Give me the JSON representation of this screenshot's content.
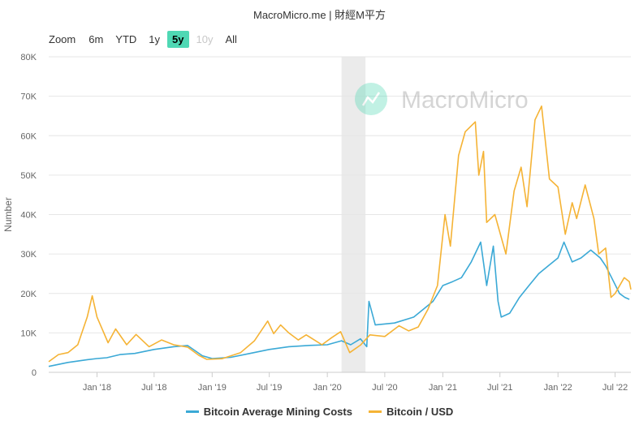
{
  "header": {
    "title": "MacroMicro.me | 財經M平方"
  },
  "zoom": {
    "label": "Zoom",
    "buttons": [
      {
        "label": "6m",
        "state": "normal"
      },
      {
        "label": "YTD",
        "state": "normal"
      },
      {
        "label": "1y",
        "state": "normal"
      },
      {
        "label": "5y",
        "state": "active"
      },
      {
        "label": "10y",
        "state": "disabled"
      },
      {
        "label": "All",
        "state": "normal"
      }
    ]
  },
  "watermark": {
    "text": "MacroMicro"
  },
  "colors": {
    "mining": "#3ba9d6",
    "price": "#f5b335",
    "recession": "#ebebeb",
    "grid": "#e6e6e6"
  },
  "chart_data": {
    "type": "line",
    "ylabel": "Number",
    "ylim": [
      0,
      80000
    ],
    "yticks": [
      {
        "v": 0,
        "label": "0"
      },
      {
        "v": 10000,
        "label": "10K"
      },
      {
        "v": 20000,
        "label": "20K"
      },
      {
        "v": 30000,
        "label": "30K"
      },
      {
        "v": 40000,
        "label": "40K"
      },
      {
        "v": 50000,
        "label": "50K"
      },
      {
        "v": 60000,
        "label": "60K"
      },
      {
        "v": 70000,
        "label": "70K"
      },
      {
        "v": 80000,
        "label": "80K"
      }
    ],
    "xlim": [
      "2017-08-01",
      "2022-08-20"
    ],
    "xticks": [
      {
        "date": "2018-01-01",
        "label": "Jan '18"
      },
      {
        "date": "2018-07-01",
        "label": "Jul '18"
      },
      {
        "date": "2019-01-01",
        "label": "Jan '19"
      },
      {
        "date": "2019-07-01",
        "label": "Jul '19"
      },
      {
        "date": "2020-01-01",
        "label": "Jan '20"
      },
      {
        "date": "2020-07-01",
        "label": "Jul '20"
      },
      {
        "date": "2021-01-01",
        "label": "Jan '21"
      },
      {
        "date": "2021-07-01",
        "label": "Jul '21"
      },
      {
        "date": "2022-01-01",
        "label": "Jan '22"
      },
      {
        "date": "2022-07-01",
        "label": "Jul '22"
      }
    ],
    "shaded_band": [
      "2020-02-15",
      "2020-05-01"
    ],
    "series": [
      {
        "name": "Bitcoin Average Mining Costs",
        "color": "#3ba9d6",
        "points": [
          [
            "2017-08-01",
            1500
          ],
          [
            "2017-10-01",
            2500
          ],
          [
            "2017-12-01",
            3200
          ],
          [
            "2018-01-01",
            3500
          ],
          [
            "2018-02-01",
            3700
          ],
          [
            "2018-03-15",
            4500
          ],
          [
            "2018-05-01",
            4800
          ],
          [
            "2018-07-01",
            5800
          ],
          [
            "2018-09-01",
            6500
          ],
          [
            "2018-10-15",
            6800
          ],
          [
            "2018-12-01",
            4200
          ],
          [
            "2019-01-01",
            3500
          ],
          [
            "2019-03-01",
            3800
          ],
          [
            "2019-05-01",
            4800
          ],
          [
            "2019-07-01",
            5800
          ],
          [
            "2019-09-01",
            6500
          ],
          [
            "2019-11-01",
            6800
          ],
          [
            "2020-01-01",
            7000
          ],
          [
            "2020-02-15",
            8000
          ],
          [
            "2020-03-15",
            7000
          ],
          [
            "2020-04-15",
            8500
          ],
          [
            "2020-05-05",
            6500
          ],
          [
            "2020-05-12",
            18000
          ],
          [
            "2020-06-01",
            12000
          ],
          [
            "2020-08-01",
            12500
          ],
          [
            "2020-10-01",
            14000
          ],
          [
            "2020-12-01",
            18000
          ],
          [
            "2021-01-01",
            22000
          ],
          [
            "2021-02-01",
            23000
          ],
          [
            "2021-03-01",
            24000
          ],
          [
            "2021-04-01",
            28000
          ],
          [
            "2021-05-01",
            33000
          ],
          [
            "2021-05-20",
            22000
          ],
          [
            "2021-06-10",
            32000
          ],
          [
            "2021-06-25",
            18000
          ],
          [
            "2021-07-05",
            14000
          ],
          [
            "2021-08-01",
            15000
          ],
          [
            "2021-09-01",
            19000
          ],
          [
            "2021-10-01",
            22000
          ],
          [
            "2021-11-01",
            25000
          ],
          [
            "2021-12-01",
            27000
          ],
          [
            "2022-01-01",
            29000
          ],
          [
            "2022-01-20",
            33000
          ],
          [
            "2022-02-15",
            28000
          ],
          [
            "2022-03-15",
            29000
          ],
          [
            "2022-04-15",
            31000
          ],
          [
            "2022-05-15",
            29000
          ],
          [
            "2022-06-01",
            27000
          ],
          [
            "2022-06-20",
            24000
          ],
          [
            "2022-07-15",
            20000
          ],
          [
            "2022-08-01",
            19000
          ],
          [
            "2022-08-15",
            18500
          ]
        ]
      },
      {
        "name": "Bitcoin / USD",
        "color": "#f5b335",
        "points": [
          [
            "2017-08-01",
            2700
          ],
          [
            "2017-09-01",
            4500
          ],
          [
            "2017-10-01",
            5000
          ],
          [
            "2017-11-01",
            7000
          ],
          [
            "2017-12-01",
            14000
          ],
          [
            "2017-12-17",
            19400
          ],
          [
            "2018-01-01",
            14000
          ],
          [
            "2018-02-05",
            7500
          ],
          [
            "2018-03-01",
            11000
          ],
          [
            "2018-04-05",
            7000
          ],
          [
            "2018-05-05",
            9600
          ],
          [
            "2018-06-15",
            6500
          ],
          [
            "2018-07-25",
            8200
          ],
          [
            "2018-09-01",
            7000
          ],
          [
            "2018-10-15",
            6400
          ],
          [
            "2018-11-20",
            4300
          ],
          [
            "2018-12-15",
            3300
          ],
          [
            "2019-02-01",
            3450
          ],
          [
            "2019-04-01",
            5000
          ],
          [
            "2019-05-15",
            8000
          ],
          [
            "2019-06-26",
            13000
          ],
          [
            "2019-07-15",
            9800
          ],
          [
            "2019-08-06",
            12000
          ],
          [
            "2019-09-01",
            10000
          ],
          [
            "2019-10-01",
            8200
          ],
          [
            "2019-10-26",
            9500
          ],
          [
            "2019-12-15",
            7000
          ],
          [
            "2020-01-15",
            8800
          ],
          [
            "2020-02-12",
            10300
          ],
          [
            "2020-03-12",
            5000
          ],
          [
            "2020-04-15",
            6900
          ],
          [
            "2020-05-15",
            9500
          ],
          [
            "2020-07-01",
            9100
          ],
          [
            "2020-08-15",
            11800
          ],
          [
            "2020-09-15",
            10500
          ],
          [
            "2020-10-15",
            11500
          ],
          [
            "2020-11-15",
            16000
          ],
          [
            "2020-12-15",
            22000
          ],
          [
            "2021-01-08",
            40000
          ],
          [
            "2021-01-25",
            32000
          ],
          [
            "2021-02-20",
            55000
          ],
          [
            "2021-03-13",
            61000
          ],
          [
            "2021-04-14",
            63500
          ],
          [
            "2021-04-25",
            50000
          ],
          [
            "2021-05-10",
            56000
          ],
          [
            "2021-05-20",
            38000
          ],
          [
            "2021-06-15",
            40000
          ],
          [
            "2021-07-20",
            30000
          ],
          [
            "2021-08-15",
            46000
          ],
          [
            "2021-09-06",
            52000
          ],
          [
            "2021-09-25",
            42000
          ],
          [
            "2021-10-20",
            64000
          ],
          [
            "2021-11-10",
            67500
          ],
          [
            "2021-12-05",
            49000
          ],
          [
            "2022-01-01",
            47000
          ],
          [
            "2022-01-24",
            35000
          ],
          [
            "2022-02-15",
            43000
          ],
          [
            "2022-03-01",
            39000
          ],
          [
            "2022-03-28",
            47500
          ],
          [
            "2022-04-25",
            39000
          ],
          [
            "2022-05-10",
            30000
          ],
          [
            "2022-06-01",
            31500
          ],
          [
            "2022-06-18",
            19000
          ],
          [
            "2022-07-01",
            20000
          ],
          [
            "2022-07-30",
            24000
          ],
          [
            "2022-08-15",
            23000
          ],
          [
            "2022-08-20",
            21000
          ]
        ]
      }
    ]
  }
}
